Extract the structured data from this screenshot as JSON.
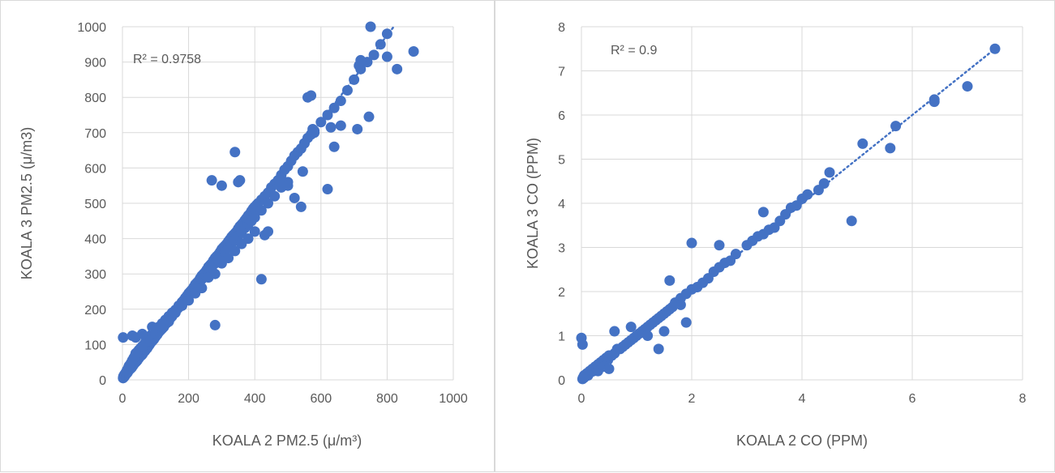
{
  "chart_data": [
    {
      "type": "scatter",
      "title": "",
      "xlabel": "KOALA 2 PM2.5 (μ/m³)",
      "ylabel": "KOALA 3 PM2.5 (μ/m3)",
      "xlim": [
        0,
        1000
      ],
      "ylim": [
        0,
        1000
      ],
      "xticks": [
        "0",
        "200",
        "400",
        "600",
        "800",
        "1000"
      ],
      "yticks": [
        "0",
        "100",
        "200",
        "300",
        "400",
        "500",
        "600",
        "700",
        "800",
        "900",
        "1000"
      ],
      "grid": true,
      "annotation": "R² = 0.9758",
      "trendline": {
        "style": "dotted",
        "slope": 1.22,
        "intercept": 0,
        "x_range": [
          0,
          820
        ]
      },
      "marker_color": "#4472c4",
      "series": [
        {
          "x": [
            2,
            5,
            8,
            10,
            12,
            15,
            18,
            20,
            22,
            25,
            28,
            30,
            33,
            35,
            38,
            40,
            42,
            45,
            48,
            50,
            52,
            55,
            58,
            60,
            62,
            65,
            68,
            70,
            72,
            75,
            78,
            80,
            82,
            85,
            88,
            90,
            92,
            95,
            98,
            100,
            105,
            110,
            115,
            120,
            125,
            130,
            135,
            140,
            145,
            150,
            155,
            160,
            165,
            170,
            175,
            180,
            185,
            190,
            195,
            200,
            205,
            210,
            215,
            220,
            225,
            230,
            235,
            240,
            245,
            250,
            255,
            260,
            265,
            270,
            275,
            280,
            285,
            290,
            295,
            300,
            305,
            310,
            315,
            320,
            325,
            330,
            335,
            340,
            345,
            350,
            355,
            360,
            365,
            370,
            375,
            380,
            385,
            390,
            395,
            400,
            405,
            410,
            420,
            430,
            440,
            450,
            460,
            470,
            480,
            490,
            500,
            510,
            520,
            530,
            540,
            550,
            560,
            570,
            580,
            600,
            620,
            640,
            660,
            680,
            700,
            720,
            740,
            760,
            780,
            800,
            3,
            6,
            10,
            14,
            18,
            22,
            26,
            30,
            34,
            38,
            42,
            46,
            50,
            55,
            60,
            65,
            70,
            75,
            80,
            85,
            90,
            95,
            100,
            110,
            120,
            130,
            140,
            150,
            160,
            170,
            180,
            190,
            200,
            210,
            220,
            230,
            240,
            250,
            260,
            270,
            280,
            290,
            300,
            310,
            320,
            330,
            340,
            350,
            360,
            370,
            380,
            390,
            400,
            420,
            440,
            460,
            480,
            500,
            10,
            20,
            30,
            40,
            60,
            80,
            100,
            120,
            140,
            160,
            180,
            200,
            220,
            240,
            260,
            280,
            300,
            320,
            340,
            360,
            380,
            400,
            2,
            30,
            40,
            60,
            90,
            270,
            280,
            300,
            340,
            350,
            355,
            420,
            430,
            440,
            480,
            500,
            520,
            540,
            545,
            550,
            560,
            570,
            575,
            580,
            620,
            630,
            640,
            660,
            710,
            715,
            720,
            750,
            800,
            830,
            880,
            745
          ],
          "y": [
            5,
            8,
            12,
            15,
            18,
            20,
            25,
            28,
            30,
            32,
            35,
            38,
            42,
            45,
            48,
            50,
            52,
            55,
            60,
            62,
            65,
            68,
            70,
            72,
            75,
            80,
            82,
            85,
            88,
            90,
            95,
            98,
            100,
            105,
            108,
            110,
            112,
            115,
            120,
            122,
            128,
            135,
            140,
            145,
            150,
            158,
            162,
            170,
            175,
            180,
            188,
            195,
            200,
            205,
            212,
            220,
            225,
            230,
            238,
            245,
            250,
            255,
            262,
            270,
            275,
            280,
            288,
            295,
            300,
            305,
            312,
            320,
            325,
            330,
            338,
            345,
            350,
            355,
            362,
            370,
            375,
            380,
            385,
            392,
            398,
            405,
            410,
            415,
            420,
            428,
            435,
            440,
            445,
            452,
            458,
            465,
            470,
            478,
            485,
            490,
            495,
            500,
            510,
            520,
            530,
            545,
            555,
            565,
            580,
            595,
            605,
            620,
            635,
            645,
            655,
            670,
            685,
            695,
            705,
            730,
            750,
            770,
            790,
            820,
            850,
            880,
            900,
            920,
            950,
            980,
            10,
            15,
            20,
            28,
            35,
            40,
            48,
            55,
            62,
            68,
            75,
            80,
            85,
            90,
            95,
            100,
            108,
            112,
            118,
            125,
            130,
            135,
            140,
            150,
            160,
            170,
            180,
            190,
            198,
            210,
            220,
            232,
            240,
            255,
            262,
            275,
            285,
            298,
            310,
            318,
            330,
            340,
            350,
            362,
            375,
            385,
            395,
            408,
            418,
            430,
            440,
            450,
            460,
            480,
            500,
            520,
            545,
            560,
            20,
            40,
            55,
            75,
            95,
            110,
            130,
            150,
            165,
            190,
            210,
            225,
            245,
            260,
            290,
            300,
            330,
            345,
            365,
            385,
            400,
            420,
            120,
            125,
            120,
            130,
            150,
            565,
            155,
            550,
            645,
            560,
            565,
            285,
            410,
            420,
            560,
            550,
            515,
            490,
            590,
            670,
            800,
            805,
            710,
            700,
            540,
            715,
            660,
            720,
            710,
            890,
            905,
            1000,
            915,
            880,
            930,
            745
          ]
        }
      ]
    },
    {
      "type": "scatter",
      "title": "",
      "xlabel": "KOALA 2 CO (PPM)",
      "ylabel": "KOALA 3 CO (PPM)",
      "xlim": [
        0,
        8
      ],
      "ylim": [
        0,
        8
      ],
      "xticks": [
        "0",
        "2",
        "4",
        "6",
        "8"
      ],
      "yticks": [
        "0",
        "1",
        "2",
        "3",
        "4",
        "5",
        "6",
        "7",
        "8"
      ],
      "grid": true,
      "annotation": "R² = 0.9",
      "trendline": {
        "style": "dotted",
        "slope": 1.0,
        "intercept": 0,
        "x_range": [
          0,
          7.5
        ]
      },
      "marker_color": "#4472c4",
      "series": [
        {
          "x": [
            0.02,
            0.03,
            0.05,
            0.05,
            0.08,
            0.1,
            0.12,
            0.15,
            0.18,
            0.2,
            0.22,
            0.25,
            0.28,
            0.3,
            0.32,
            0.35,
            0.38,
            0.4,
            0.42,
            0.45,
            0.48,
            0.5,
            0.55,
            0.6,
            0.65,
            0.7,
            0.75,
            0.8,
            0.85,
            0.9,
            0.95,
            1.0,
            1.05,
            1.1,
            1.15,
            1.2,
            1.25,
            1.3,
            1.35,
            1.4,
            1.45,
            1.5,
            1.55,
            1.6,
            1.65,
            1.7,
            1.8,
            1.9,
            2.0,
            2.1,
            2.2,
            2.3,
            2.4,
            2.5,
            2.6,
            2.7,
            2.8,
            3.0,
            3.1,
            3.2,
            3.3,
            3.4,
            3.5,
            3.6,
            3.7,
            3.8,
            3.9,
            4.0,
            4.1,
            4.3,
            4.4,
            4.5,
            5.1,
            5.6,
            5.7,
            6.4,
            6.4,
            7.0,
            7.5,
            0.0,
            0.02,
            0.05,
            0.6,
            0.9,
            1.4,
            1.6,
            1.9,
            2.0,
            2.5,
            3.3,
            4.9,
            0.3,
            0.4,
            0.5,
            1.2,
            1.5,
            1.8
          ],
          "y": [
            0.02,
            0.05,
            0.08,
            0.1,
            0.12,
            0.15,
            0.1,
            0.2,
            0.18,
            0.25,
            0.2,
            0.3,
            0.25,
            0.35,
            0.3,
            0.4,
            0.35,
            0.45,
            0.4,
            0.5,
            0.45,
            0.55,
            0.55,
            0.6,
            0.7,
            0.7,
            0.75,
            0.8,
            0.85,
            0.9,
            0.95,
            1.0,
            1.05,
            1.1,
            1.15,
            1.2,
            1.25,
            1.3,
            1.35,
            1.4,
            1.45,
            1.5,
            1.55,
            1.6,
            1.65,
            1.75,
            1.85,
            1.95,
            2.05,
            2.1,
            2.2,
            2.3,
            2.45,
            2.55,
            2.65,
            2.7,
            2.85,
            3.05,
            3.15,
            3.25,
            3.3,
            3.4,
            3.45,
            3.6,
            3.75,
            3.9,
            3.95,
            4.1,
            4.2,
            4.3,
            4.45,
            4.7,
            5.35,
            5.25,
            5.75,
            6.35,
            6.3,
            6.65,
            7.5,
            0.95,
            0.8,
            0.05,
            1.1,
            1.2,
            0.7,
            2.25,
            1.3,
            3.1,
            3.05,
            3.8,
            3.6,
            0.2,
            0.3,
            0.25,
            1.0,
            1.1,
            1.7
          ]
        }
      ]
    }
  ]
}
